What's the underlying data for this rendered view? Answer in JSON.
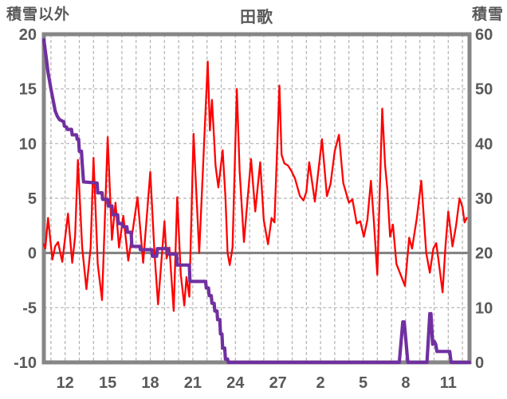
{
  "header": {
    "left_axis_title": "積雪以外",
    "chart_title": "田歌",
    "right_axis_title": "積雪"
  },
  "chart_data": {
    "type": "line",
    "title": "田歌",
    "x_axis": {
      "day_min": 10.5,
      "day_max": 40.5,
      "gridline_day_start": 11,
      "gridline_day_end": 40,
      "tick_days": [
        12,
        15,
        18,
        21,
        24,
        27,
        30,
        33,
        36,
        39
      ],
      "tick_labels": [
        "12",
        "15",
        "18",
        "21",
        "24",
        "27",
        "2",
        "5",
        "8",
        "11"
      ]
    },
    "left_axis": {
      "title": "積雪以外",
      "min": -10,
      "max": 20,
      "ticks": [
        20,
        15,
        10,
        5,
        0,
        -5,
        -10
      ]
    },
    "right_axis": {
      "title": "積雪",
      "min": 0,
      "max": 60,
      "ticks": [
        60,
        50,
        40,
        30,
        20,
        10,
        0
      ]
    },
    "grid": {
      "h_dashed_left_values": [
        15,
        10,
        5,
        -5
      ],
      "zero_line_left_value": 0
    },
    "colors": {
      "background": "#FFFFFF",
      "border": "#868686",
      "grid": "#B3B3B3",
      "zero_line": "#808080",
      "text": "#595959",
      "red_series": "#FF0000",
      "purple_series": "#7030A0"
    },
    "series": [
      {
        "name": "積雪以外 (red line)",
        "axis": "left",
        "color": "#FF0000",
        "width": 2.3,
        "points": [
          [
            10.5,
            0.8
          ],
          [
            10.6,
            0.4
          ],
          [
            10.8,
            3.2
          ],
          [
            11.1,
            -0.6
          ],
          [
            11.3,
            0.6
          ],
          [
            11.5,
            1.0
          ],
          [
            11.8,
            -0.8
          ],
          [
            12.2,
            3.6
          ],
          [
            12.5,
            -0.9
          ],
          [
            12.7,
            1.5
          ],
          [
            12.9,
            8.5
          ],
          [
            13.2,
            0.5
          ],
          [
            13.5,
            -3.3
          ],
          [
            13.8,
            0.5
          ],
          [
            14.0,
            8.7
          ],
          [
            14.3,
            -1.0
          ],
          [
            14.6,
            -4.3
          ],
          [
            15.0,
            10.6
          ],
          [
            15.3,
            1.2
          ],
          [
            15.55,
            4.6
          ],
          [
            15.8,
            0.5
          ],
          [
            16.1,
            3.4
          ],
          [
            16.45,
            -0.7
          ],
          [
            16.7,
            1.5
          ],
          [
            17.1,
            5.1
          ],
          [
            17.5,
            -0.9
          ],
          [
            18.0,
            7.4
          ],
          [
            18.3,
            0.0
          ],
          [
            18.55,
            -4.7
          ],
          [
            19.0,
            2.9
          ],
          [
            19.15,
            -0.5
          ],
          [
            19.35,
            0.5
          ],
          [
            19.65,
            -5.3
          ],
          [
            19.9,
            5.1
          ],
          [
            20.15,
            -2.0
          ],
          [
            20.4,
            -4.8
          ],
          [
            20.55,
            -2.2
          ],
          [
            20.75,
            -4.0
          ],
          [
            21.05,
            10.9
          ],
          [
            21.45,
            0.0
          ],
          [
            22.05,
            17.5
          ],
          [
            22.2,
            11.2
          ],
          [
            22.35,
            14.0
          ],
          [
            22.6,
            8.0
          ],
          [
            22.8,
            6.0
          ],
          [
            23.1,
            9.4
          ],
          [
            23.3,
            5.1
          ],
          [
            23.45,
            0.0
          ],
          [
            23.6,
            -1.1
          ],
          [
            23.8,
            0.5
          ],
          [
            24.1,
            15.0
          ],
          [
            24.3,
            7.5
          ],
          [
            24.6,
            1.0
          ],
          [
            25.1,
            8.6
          ],
          [
            25.4,
            3.8
          ],
          [
            25.75,
            8.3
          ],
          [
            26.0,
            3.0
          ],
          [
            26.3,
            0.8
          ],
          [
            26.55,
            3.2
          ],
          [
            26.75,
            2.8
          ],
          [
            27.1,
            15.3
          ],
          [
            27.25,
            9.0
          ],
          [
            27.45,
            8.2
          ],
          [
            27.7,
            8.0
          ],
          [
            27.95,
            7.5
          ],
          [
            28.2,
            6.8
          ],
          [
            28.55,
            5.2
          ],
          [
            28.8,
            4.8
          ],
          [
            29.0,
            5.6
          ],
          [
            29.2,
            8.3
          ],
          [
            29.6,
            4.7
          ],
          [
            30.1,
            10.4
          ],
          [
            30.45,
            5.2
          ],
          [
            30.7,
            6.3
          ],
          [
            31.0,
            9.3
          ],
          [
            31.3,
            10.8
          ],
          [
            31.6,
            6.4
          ],
          [
            32.0,
            4.6
          ],
          [
            32.25,
            4.9
          ],
          [
            32.55,
            2.7
          ],
          [
            32.8,
            2.9
          ],
          [
            33.05,
            1.5
          ],
          [
            33.3,
            3.0
          ],
          [
            33.55,
            6.6
          ],
          [
            33.75,
            3.0
          ],
          [
            34.0,
            -2.0
          ],
          [
            34.35,
            13.2
          ],
          [
            34.55,
            8.0
          ],
          [
            34.7,
            5.9
          ],
          [
            34.9,
            1.5
          ],
          [
            35.1,
            2.6
          ],
          [
            35.35,
            -1.0
          ],
          [
            35.95,
            -3.0
          ],
          [
            36.25,
            1.4
          ],
          [
            36.45,
            0.4
          ],
          [
            36.8,
            3.3
          ],
          [
            37.1,
            6.6
          ],
          [
            37.45,
            0.0
          ],
          [
            37.7,
            -1.8
          ],
          [
            37.95,
            0.4
          ],
          [
            38.15,
            0.9
          ],
          [
            38.3,
            -0.5
          ],
          [
            38.6,
            -3.6
          ],
          [
            38.8,
            0.5
          ],
          [
            39.0,
            3.8
          ],
          [
            39.15,
            2.2
          ],
          [
            39.3,
            0.6
          ],
          [
            39.55,
            2.5
          ],
          [
            39.8,
            5.0
          ],
          [
            40.0,
            4.2
          ],
          [
            40.15,
            2.8
          ],
          [
            40.3,
            3.2
          ]
        ]
      },
      {
        "name": "積雪 (purple line)",
        "axis": "right",
        "color": "#7030A0",
        "width": 4.2,
        "points": [
          [
            10.5,
            59
          ],
          [
            10.65,
            56
          ],
          [
            10.8,
            53
          ],
          [
            11.0,
            50
          ],
          [
            11.15,
            48
          ],
          [
            11.3,
            46
          ],
          [
            11.45,
            45
          ],
          [
            11.6,
            44.4
          ],
          [
            11.9,
            44
          ],
          [
            11.95,
            43.2
          ],
          [
            12.1,
            43
          ],
          [
            12.15,
            42.6
          ],
          [
            12.45,
            42.6
          ],
          [
            12.5,
            41.6
          ],
          [
            12.8,
            41.6
          ],
          [
            12.85,
            40.8
          ],
          [
            12.95,
            40.8
          ],
          [
            13.0,
            38.6
          ],
          [
            13.15,
            38.6
          ],
          [
            13.2,
            36.4
          ],
          [
            13.3,
            33
          ],
          [
            14.25,
            32.8
          ],
          [
            14.3,
            31
          ],
          [
            14.6,
            31
          ],
          [
            14.65,
            29.8
          ],
          [
            15.0,
            29.8
          ],
          [
            15.05,
            28.6
          ],
          [
            15.3,
            28.6
          ],
          [
            15.35,
            27
          ],
          [
            15.7,
            27
          ],
          [
            15.75,
            25.4
          ],
          [
            16.0,
            25.4
          ],
          [
            16.05,
            24.8
          ],
          [
            16.35,
            24.8
          ],
          [
            16.4,
            23.8
          ],
          [
            16.65,
            23.8
          ],
          [
            16.7,
            21.2
          ],
          [
            17.25,
            21.2
          ],
          [
            17.3,
            20.6
          ],
          [
            18.1,
            20.6
          ],
          [
            18.15,
            19.4
          ],
          [
            18.45,
            19.4
          ],
          [
            18.5,
            20.8
          ],
          [
            19.2,
            20.8
          ],
          [
            19.25,
            19.8
          ],
          [
            19.85,
            19.8
          ],
          [
            19.9,
            17.8
          ],
          [
            20.75,
            17.8
          ],
          [
            20.8,
            14.8
          ],
          [
            21.9,
            14.8
          ],
          [
            21.95,
            13.6
          ],
          [
            22.1,
            13.6
          ],
          [
            22.15,
            12.2
          ],
          [
            22.3,
            12.2
          ],
          [
            22.35,
            10.8
          ],
          [
            22.5,
            10.8
          ],
          [
            22.55,
            9.4
          ],
          [
            22.7,
            9.4
          ],
          [
            22.75,
            7.8
          ],
          [
            22.9,
            7.8
          ],
          [
            22.95,
            5.2
          ],
          [
            23.05,
            5.2
          ],
          [
            23.1,
            2.6
          ],
          [
            23.25,
            2.6
          ],
          [
            23.3,
            0.6
          ],
          [
            23.45,
            0.6
          ],
          [
            23.5,
            0
          ],
          [
            35.55,
            0
          ],
          [
            35.8,
            7.4
          ],
          [
            35.9,
            7.4
          ],
          [
            36.15,
            0
          ],
          [
            37.5,
            0
          ],
          [
            37.7,
            8.9
          ],
          [
            37.78,
            8.9
          ],
          [
            37.9,
            3.3
          ],
          [
            38.0,
            3.9
          ],
          [
            38.12,
            3.3
          ],
          [
            38.2,
            2.0
          ],
          [
            39.1,
            2.0
          ],
          [
            39.2,
            0
          ],
          [
            40.5,
            0
          ]
        ]
      }
    ]
  }
}
